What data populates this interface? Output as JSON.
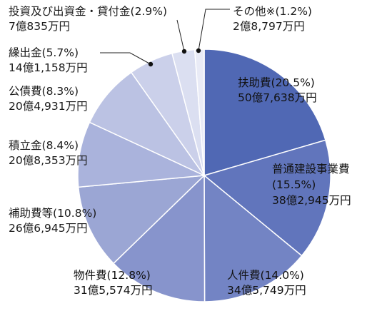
{
  "chart_data": {
    "type": "pie",
    "title": "",
    "start_angle_deg": 0,
    "direction": "clockwise",
    "slices": [
      {
        "name": "扶助費",
        "percent_label": "(20.5%)",
        "value": 20.5,
        "amount_label": "50億7,638万円",
        "color": "#5068b4",
        "text_color": "#111111"
      },
      {
        "name": "普通建設事業費",
        "percent_label": "(15.5%)",
        "value": 15.5,
        "amount_label": "38億2,945万円",
        "color": "#6175bc",
        "text_color": "#111111"
      },
      {
        "name": "人件費",
        "percent_label": "(14.0%)",
        "value": 14.0,
        "amount_label": "34億5,749万円",
        "color": "#7384c4",
        "text_color": "#111111"
      },
      {
        "name": "物件費",
        "percent_label": "(12.8%)",
        "value": 12.8,
        "amount_label": "31億5,574万円",
        "color": "#8794cc",
        "text_color": "#111111"
      },
      {
        "name": "補助費等",
        "percent_label": "(10.8%)",
        "value": 10.8,
        "amount_label": "26億6,945万円",
        "color": "#9ba6d4",
        "text_color": "#1a1a1a"
      },
      {
        "name": "積立金",
        "percent_label": "(8.4%)",
        "value": 8.4,
        "amount_label": "20億8,353万円",
        "color": "#aab3dc",
        "text_color": "#1a1a1a"
      },
      {
        "name": "公債費",
        "percent_label": "(8.3%)",
        "value": 8.3,
        "amount_label": "20億4,931万円",
        "color": "#bbc2e3",
        "text_color": "#1a1a1a"
      },
      {
        "name": "繰出金",
        "percent_label": "(5.7%)",
        "value": 5.7,
        "amount_label": "14億1,158万円",
        "color": "#cbd0ea",
        "text_color": "#1a1a1a"
      },
      {
        "name": "投資及び出資金・貸付金",
        "percent_label": "(2.9%)",
        "value": 2.9,
        "amount_label": "7億835万円",
        "color": "#dbdff1",
        "text_color": "#1a1a1a"
      },
      {
        "name": "その他※",
        "percent_label": "(1.2%)",
        "value": 1.2,
        "amount_label": "2億8,797万円",
        "color": "#e9ebf6",
        "text_color": "#1a1a1a"
      }
    ]
  }
}
